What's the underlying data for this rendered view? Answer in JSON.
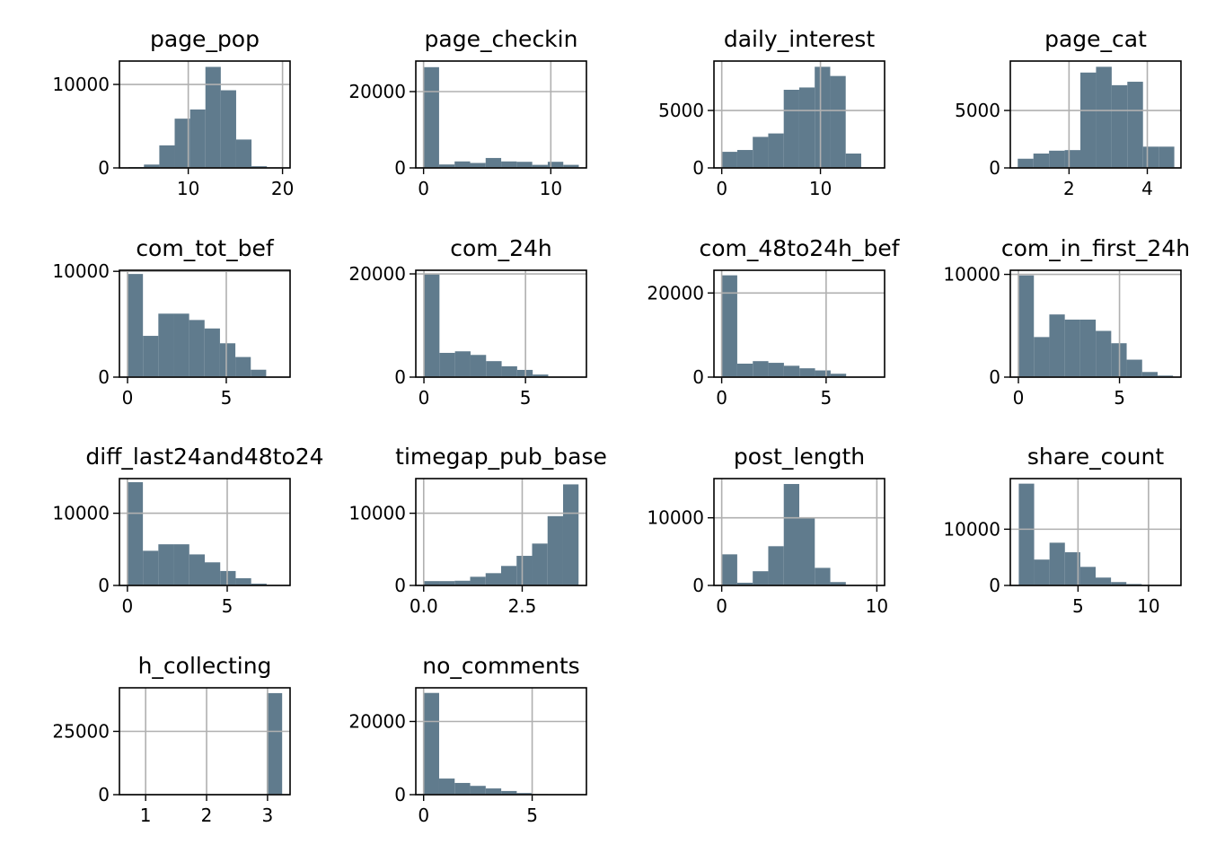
{
  "chart_data": [
    {
      "type": "histogram",
      "title": "page_pop",
      "bins": [
        3.67,
        5.3,
        6.93,
        8.56,
        10.19,
        11.82,
        13.45,
        15.08,
        16.71,
        18.34,
        19.97
      ],
      "values": [
        100,
        400,
        2700,
        5900,
        7000,
        12100,
        9300,
        3400,
        200,
        50
      ],
      "color": "#607b8d",
      "xlim": [
        2.7,
        20.8
      ],
      "ylim": [
        0,
        12800
      ],
      "xticks": [
        10,
        20
      ],
      "yticks": [
        0,
        10000
      ],
      "grid": true
    },
    {
      "type": "histogram",
      "title": "page_checkin",
      "bins": [
        0,
        1.22,
        2.44,
        3.66,
        4.88,
        6.1,
        7.32,
        8.54,
        9.76,
        10.98,
        12.2
      ],
      "values": [
        26400,
        900,
        1700,
        1300,
        2600,
        1700,
        1600,
        800,
        1600,
        800
      ],
      "color": "#607b8d",
      "xlim": [
        -0.61,
        12.8
      ],
      "ylim": [
        0,
        28000
      ],
      "xticks": [
        0,
        10
      ],
      "yticks": [
        0,
        20000
      ],
      "grid": true
    },
    {
      "type": "histogram",
      "title": "daily_interest",
      "bins": [
        0,
        1.57,
        3.14,
        4.71,
        6.28,
        7.85,
        9.42,
        10.99,
        12.56,
        14.13,
        15.7
      ],
      "values": [
        1400,
        1560,
        2700,
        3000,
        6800,
        7000,
        8800,
        8000,
        1250,
        0
      ],
      "color": "#607b8d",
      "xlim": [
        -0.79,
        16.5
      ],
      "ylim": [
        0,
        9300
      ],
      "xticks": [
        0,
        10
      ],
      "yticks": [
        0,
        5000
      ],
      "grid": true
    },
    {
      "type": "histogram",
      "title": "page_cat",
      "bins": [
        0.69,
        1.09,
        1.49,
        1.89,
        2.29,
        2.69,
        3.09,
        3.49,
        3.89,
        4.29,
        4.69
      ],
      "values": [
        800,
        1250,
        1500,
        1550,
        8300,
        8800,
        7200,
        7500,
        1850,
        1850
      ],
      "color": "#607b8d",
      "xlim": [
        0.5,
        4.86
      ],
      "ylim": [
        0,
        9300
      ],
      "xticks": [
        2,
        4
      ],
      "yticks": [
        0,
        5000
      ],
      "grid": true
    },
    {
      "type": "histogram",
      "title": "com_tot_bef",
      "bins": [
        0,
        0.78,
        1.56,
        2.34,
        3.12,
        3.9,
        4.68,
        5.46,
        6.24,
        7.02,
        7.8
      ],
      "values": [
        9750,
        3900,
        6000,
        6000,
        5400,
        4600,
        3200,
        1900,
        700,
        50
      ],
      "color": "#607b8d",
      "xlim": [
        -0.41,
        8.23
      ],
      "ylim": [
        0,
        10100
      ],
      "xticks": [
        0,
        5
      ],
      "yticks": [
        0,
        10000
      ],
      "grid": true
    },
    {
      "type": "histogram",
      "title": "com_24h",
      "bins": [
        0,
        0.765,
        1.53,
        2.295,
        3.06,
        3.825,
        4.59,
        5.355,
        6.12,
        6.885,
        7.65
      ],
      "values": [
        20000,
        4700,
        5000,
        4300,
        3100,
        2100,
        1400,
        500,
        100,
        30
      ],
      "color": "#607b8d",
      "xlim": [
        -0.4,
        8.0
      ],
      "ylim": [
        0,
        20700
      ],
      "xticks": [
        0,
        5
      ],
      "yticks": [
        0,
        20000
      ],
      "grid": true
    },
    {
      "type": "histogram",
      "title": "com_48to24h_bef",
      "bins": [
        0,
        0.745,
        1.49,
        2.235,
        2.98,
        3.725,
        4.47,
        5.215,
        5.96,
        6.705,
        7.45
      ],
      "values": [
        24200,
        3200,
        3800,
        3400,
        2700,
        2100,
        1600,
        800,
        100,
        30
      ],
      "color": "#607b8d",
      "xlim": [
        -0.37,
        7.8
      ],
      "ylim": [
        0,
        25400
      ],
      "xticks": [
        0,
        5
      ],
      "yticks": [
        0,
        20000
      ],
      "grid": true
    },
    {
      "type": "histogram",
      "title": "com_in_first_24h",
      "bins": [
        0,
        0.765,
        1.53,
        2.295,
        3.06,
        3.825,
        4.59,
        5.355,
        6.12,
        6.885,
        7.65
      ],
      "values": [
        9900,
        3900,
        6100,
        5600,
        5600,
        4500,
        3300,
        1700,
        500,
        150
      ],
      "color": "#607b8d",
      "xlim": [
        -0.4,
        8.04
      ],
      "ylim": [
        0,
        10400
      ],
      "xticks": [
        0,
        5
      ],
      "yticks": [
        0,
        10000
      ],
      "grid": true
    },
    {
      "type": "histogram",
      "title": "diff_last24and48to24",
      "bins": [
        0,
        0.775,
        1.55,
        2.325,
        3.1,
        3.875,
        4.65,
        5.425,
        6.2,
        6.975,
        7.75
      ],
      "values": [
        14300,
        4800,
        5700,
        5700,
        4300,
        3200,
        2000,
        1000,
        250,
        50
      ],
      "color": "#607b8d",
      "xlim": [
        -0.4,
        8.15
      ],
      "ylim": [
        0,
        14800
      ],
      "xticks": [
        0,
        5
      ],
      "yticks": [
        0,
        10000
      ],
      "grid": true
    },
    {
      "type": "histogram",
      "title": "timegap_pub_base",
      "bins": [
        0,
        0.393,
        0.786,
        1.179,
        1.572,
        1.965,
        2.358,
        2.751,
        3.144,
        3.537,
        3.93
      ],
      "values": [
        600,
        600,
        650,
        1200,
        1700,
        2700,
        4100,
        5800,
        9600,
        14000
      ],
      "color": "#607b8d",
      "xlim": [
        -0.2,
        4.13
      ],
      "ylim": [
        0,
        14800
      ],
      "xticks": [
        {
          "value": 0,
          "label": "0.0"
        },
        2.5
      ],
      "yticks": [
        0,
        10000
      ],
      "grid": true
    },
    {
      "type": "histogram",
      "title": "post_length",
      "bins": [
        0,
        1,
        2,
        3,
        4,
        5,
        6,
        7,
        8,
        9,
        10
      ],
      "values": [
        4600,
        400,
        2100,
        5800,
        15000,
        10000,
        2600,
        500,
        50,
        20
      ],
      "color": "#607b8d",
      "xlim": [
        -0.5,
        10.5
      ],
      "ylim": [
        0,
        15800
      ],
      "xticks": [
        0,
        10
      ],
      "yticks": [
        0,
        10000
      ],
      "grid": true
    },
    {
      "type": "histogram",
      "title": "share_count",
      "bins": [
        0.8,
        1.89,
        2.98,
        4.07,
        5.16,
        6.25,
        7.34,
        8.43,
        9.52,
        10.61,
        11.7
      ],
      "values": [
        18100,
        4600,
        7600,
        5900,
        3300,
        1400,
        600,
        250,
        80,
        30
      ],
      "color": "#607b8d",
      "xlim": [
        0.2,
        12.3
      ],
      "ylim": [
        0,
        19000
      ],
      "xticks": [
        5,
        10
      ],
      "yticks": [
        0,
        10000
      ],
      "grid": true
    },
    {
      "type": "histogram",
      "title": "h_collecting",
      "bins": [
        0.7,
        0.954,
        1.208,
        1.462,
        1.716,
        1.97,
        2.224,
        2.478,
        2.732,
        2.986,
        3.24
      ],
      "values": [
        0,
        0,
        0,
        0,
        0,
        0,
        0,
        0,
        0,
        40100
      ],
      "color": "#607b8d",
      "xlim": [
        0.57,
        3.37
      ],
      "ylim": [
        0,
        42200
      ],
      "xticks": [
        1,
        2,
        3
      ],
      "yticks": [
        0,
        25000
      ],
      "grid": true
    },
    {
      "type": "histogram",
      "title": "no_comments",
      "bins": [
        0,
        0.715,
        1.43,
        2.145,
        2.86,
        3.575,
        4.29,
        5.005,
        5.72,
        6.435,
        7.15
      ],
      "values": [
        27800,
        4400,
        3200,
        2400,
        1700,
        1000,
        450,
        150,
        50,
        20
      ],
      "color": "#607b8d",
      "xlim": [
        -0.36,
        7.5
      ],
      "ylim": [
        0,
        29200
      ],
      "xticks": [
        0,
        5
      ],
      "yticks": [
        0,
        20000
      ],
      "grid": true
    }
  ]
}
